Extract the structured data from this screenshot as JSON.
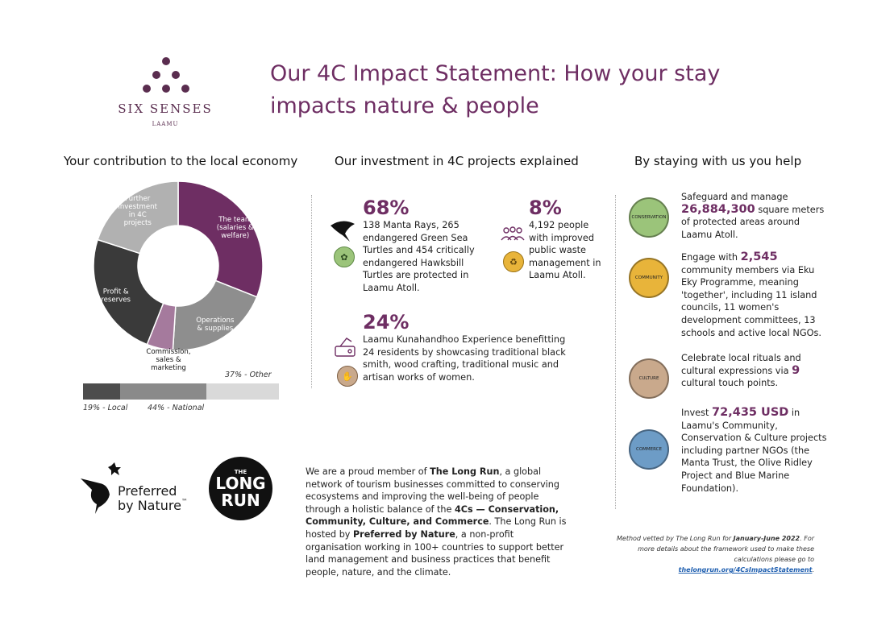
{
  "brand": {
    "name": "SIX SENSES",
    "location": "LAAMU"
  },
  "title": {
    "line1": "Our 4C Impact Statement: How your stay",
    "line2": "impacts nature & people"
  },
  "economy": {
    "heading": "Your contribution to the local economy",
    "slices": [
      {
        "label": "The team (salaries & welfare)",
        "value": 31,
        "color": "#6e2e63"
      },
      {
        "label": "Operations & supplies",
        "value": 20,
        "color": "#8e8e8e"
      },
      {
        "label": "Commission, sales & marketing",
        "value": 5,
        "color": "#a57a9d"
      },
      {
        "label": "Profit & reserves",
        "value": 24,
        "color": "#3a3a3a"
      },
      {
        "label": "Further investment in 4C projects",
        "value": 20,
        "color": "#b1b1b1"
      }
    ],
    "bar": [
      {
        "label": "19% - Local",
        "value": 19,
        "color": "#4d4d4d"
      },
      {
        "label": "44% - National",
        "value": 44,
        "color": "#8a8a8a"
      },
      {
        "label": "37% - Other",
        "value": 37,
        "color": "#d9d9d9"
      }
    ]
  },
  "investment": {
    "heading": "Our investment in 4C projects explained",
    "items": [
      {
        "pct": "68%",
        "text": "138 Manta Rays, 265 endangered Green Sea Turtles and 454 critically endangered Hawksbill Turtles are protected in Laamu Atoll."
      },
      {
        "pct": "8%",
        "text": "4,192 people with improved public waste management in Laamu Atoll."
      },
      {
        "pct": "24%",
        "text": "Laamu Kunahandhoo Experience benefitting 24 residents by showcasing traditional black smith, wood crafting, traditional music and artisan works of women."
      }
    ]
  },
  "help": {
    "heading": "By staying with us you help",
    "items": [
      {
        "pre": "Safeguard and manage ",
        "num": "26,884,300",
        "post": " square meters of protected areas around Laamu Atoll.",
        "color": "#9bc47a",
        "badge": "CONSERVATION"
      },
      {
        "pre": "Engage with ",
        "num": "2,545",
        "post": " community members via Eku Eky Programme, meaning 'together', including 11 island councils, 11 women's development committees, 13 schools and active local NGOs.",
        "color": "#e8b43a",
        "badge": "COMMUNITY"
      },
      {
        "pre": "Celebrate local rituals and cultural expressions via ",
        "num": "9",
        "post": " cultural touch points.",
        "color": "#c9a98c",
        "badge": "CULTURE"
      },
      {
        "pre": "Invest ",
        "num": "72,435 USD",
        "post": " in Laamu's Community, Conservation & Culture projects including partner NGOs (the Manta Trust, the Olive Ridley Project and Blue Marine Foundation).",
        "color": "#6d9cc6",
        "badge": "COMMERCE"
      }
    ]
  },
  "logos": {
    "pbn1": "Preferred",
    "pbn2": "by Nature",
    "tm": "™",
    "lr_the": "THE",
    "lr1": "LONG",
    "lr2": "RUN"
  },
  "about": {
    "p1": "We are a proud member of ",
    "b1": "The Long Run",
    "p2": ", a global network of tourism businesses committed to conserving ecosystems and improving the well-being of people through a holistic balance of the ",
    "b2": "4Cs — Conservation, Community, Culture, and Commerce",
    "p3": ". The Long Run is hosted by ",
    "b3": "Preferred by Nature",
    "p4": ", a non-profit organisation working in 100+ countries to support better land management and business practices that benefit people, nature, and the climate."
  },
  "method": {
    "m1": "Method vetted by The Long Run for ",
    "m2": "January-June 2022",
    "m3": ". For more details about the framework used to make these calculations please go to ",
    "link": "thelongrun.org/4CsImpactStatement",
    "m4": "."
  }
}
